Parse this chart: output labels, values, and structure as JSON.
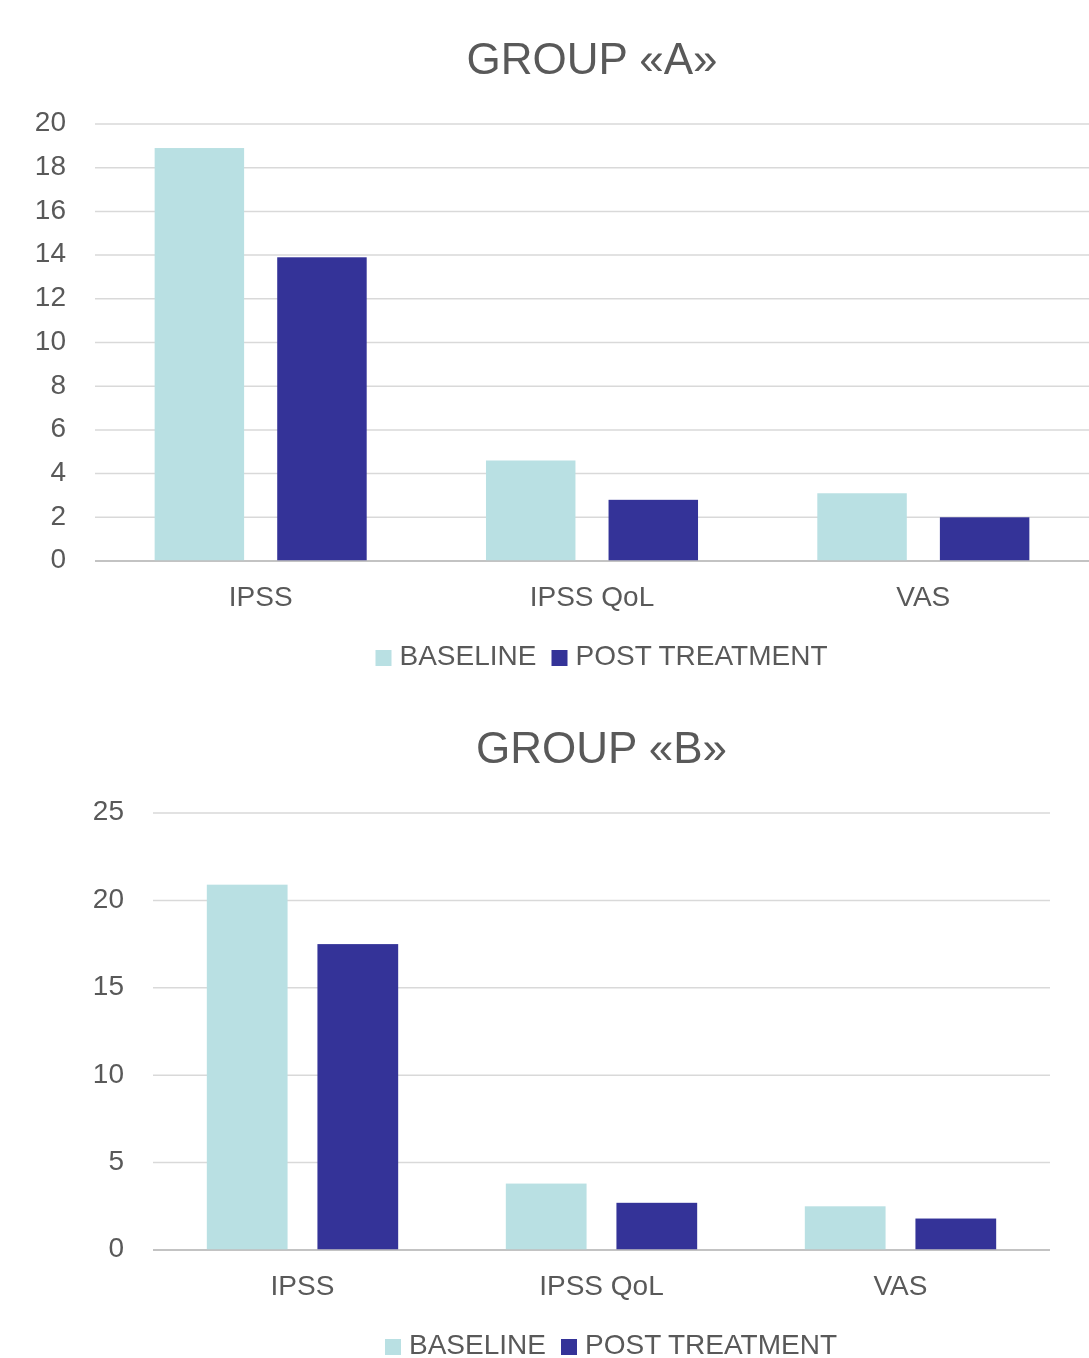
{
  "chart_data": [
    {
      "type": "bar",
      "title": "GROUP «A»",
      "categories": [
        "IPSS",
        "IPSS QoL",
        "VAS"
      ],
      "series": [
        {
          "name": "BASELINE",
          "color": "#b9e0e3",
          "values": [
            18.9,
            4.6,
            3.1
          ]
        },
        {
          "name": "POST TREATMENT",
          "color": "#343398",
          "values": [
            13.9,
            2.8,
            2.0
          ]
        }
      ],
      "ylim": [
        0,
        20
      ],
      "yticks": [
        0,
        2,
        4,
        6,
        8,
        10,
        12,
        14,
        16,
        18,
        20
      ],
      "grid": "y",
      "legend": "bottom"
    },
    {
      "type": "bar",
      "title": "GROUP «B»",
      "categories": [
        "IPSS",
        "IPSS QoL",
        "VAS"
      ],
      "series": [
        {
          "name": "BASELINE",
          "color": "#b9e0e3",
          "values": [
            20.9,
            3.8,
            2.5
          ]
        },
        {
          "name": "POST TREATMENT",
          "color": "#343398",
          "values": [
            17.5,
            2.7,
            1.8
          ]
        }
      ],
      "ylim": [
        0,
        25
      ],
      "yticks": [
        0,
        5,
        10,
        15,
        20,
        25
      ],
      "grid": "y",
      "legend": "bottom"
    }
  ]
}
